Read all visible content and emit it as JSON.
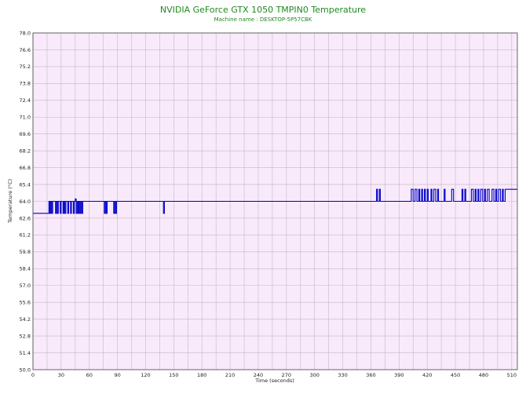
{
  "chart_data": {
    "type": "line",
    "title": "NVIDIA GeForce GTX 1050 TMPIN0 Temperature",
    "subtitle": "Machine name : DESKTOP-5P57CBK",
    "xlabel": "Time (seconds)",
    "ylabel": "Temperature (°C)",
    "xlim": [
      0,
      516
    ],
    "ylim": [
      50.0,
      78.0
    ],
    "x_ticks": [
      0,
      30,
      60,
      90,
      120,
      150,
      180,
      210,
      240,
      270,
      300,
      330,
      360,
      390,
      420,
      450,
      480,
      510
    ],
    "y_ticks": [
      "50.0",
      "51.4",
      "52.8",
      "54.2",
      "55.6",
      "57.0",
      "58.4",
      "59.8",
      "61.2",
      "62.6",
      "64.0",
      "65.4",
      "66.8",
      "68.2",
      "69.6",
      "71.0",
      "72.4",
      "73.8",
      "75.2",
      "76.6",
      "78.0"
    ],
    "grid": true,
    "colors": {
      "plot_bg": "#f8eafb",
      "grid": "#c8b4c8",
      "line": "#0000c8",
      "title": "#1f8a1f"
    },
    "series": [
      {
        "points": [
          [
            0,
            63.0
          ],
          [
            17,
            63.0
          ],
          [
            17,
            64.0
          ],
          [
            18,
            64.0
          ],
          [
            18,
            63.0
          ],
          [
            19,
            63.0
          ],
          [
            19,
            64.0
          ],
          [
            20,
            64.0
          ],
          [
            20,
            63.0
          ],
          [
            21,
            63.0
          ],
          [
            21,
            64.0
          ],
          [
            24,
            64.0
          ],
          [
            24,
            63.0
          ],
          [
            25,
            63.0
          ],
          [
            25,
            64.0
          ],
          [
            26,
            64.0
          ],
          [
            26,
            63.0
          ],
          [
            27,
            63.0
          ],
          [
            27,
            64.0
          ],
          [
            29,
            64.0
          ],
          [
            29,
            63.0
          ],
          [
            30,
            63.0
          ],
          [
            30,
            64.0
          ],
          [
            32,
            64.0
          ],
          [
            32,
            63.0
          ],
          [
            33,
            63.0
          ],
          [
            33,
            64.0
          ],
          [
            34,
            64.0
          ],
          [
            34,
            63.0
          ],
          [
            35,
            63.0
          ],
          [
            35,
            64.0
          ],
          [
            37,
            64.0
          ],
          [
            37,
            63.0
          ],
          [
            38,
            63.0
          ],
          [
            38,
            64.0
          ],
          [
            40,
            64.0
          ],
          [
            40,
            63.0
          ],
          [
            41,
            63.0
          ],
          [
            41,
            64.0
          ],
          [
            43,
            64.0
          ],
          [
            43,
            63.0
          ],
          [
            44,
            63.0
          ],
          [
            44,
            64.0
          ],
          [
            45,
            64.0
          ],
          [
            45,
            64.2
          ],
          [
            46,
            64.2
          ],
          [
            46,
            63.0
          ],
          [
            47,
            63.0
          ],
          [
            47,
            64.0
          ],
          [
            48,
            64.0
          ],
          [
            48,
            63.0
          ],
          [
            49,
            63.0
          ],
          [
            49,
            64.0
          ],
          [
            50,
            64.0
          ],
          [
            50,
            63.0
          ],
          [
            51,
            63.0
          ],
          [
            51,
            64.0
          ],
          [
            52,
            64.0
          ],
          [
            52,
            63.0
          ],
          [
            53,
            63.0
          ],
          [
            53,
            64.0
          ],
          [
            76,
            64.0
          ],
          [
            76,
            63.0
          ],
          [
            77,
            63.0
          ],
          [
            77,
            64.0
          ],
          [
            78,
            64.0
          ],
          [
            78,
            63.0
          ],
          [
            79,
            63.0
          ],
          [
            79,
            64.0
          ],
          [
            86,
            64.0
          ],
          [
            86,
            63.0
          ],
          [
            87,
            63.0
          ],
          [
            87,
            64.0
          ],
          [
            88,
            64.0
          ],
          [
            88,
            63.0
          ],
          [
            89,
            63.0
          ],
          [
            89,
            64.0
          ],
          [
            139,
            64.0
          ],
          [
            139,
            63.0
          ],
          [
            140,
            63.0
          ],
          [
            140,
            64.0
          ],
          [
            366,
            64.0
          ],
          [
            366,
            65.0
          ],
          [
            367,
            65.0
          ],
          [
            367,
            64.0
          ],
          [
            369,
            64.0
          ],
          [
            369,
            65.0
          ],
          [
            370,
            65.0
          ],
          [
            370,
            64.0
          ],
          [
            403,
            64.0
          ],
          [
            403,
            65.0
          ],
          [
            405,
            65.0
          ],
          [
            405,
            64.0
          ],
          [
            407,
            64.0
          ],
          [
            407,
            65.0
          ],
          [
            409,
            65.0
          ],
          [
            409,
            64.0
          ],
          [
            411,
            64.0
          ],
          [
            411,
            65.0
          ],
          [
            412,
            65.0
          ],
          [
            412,
            64.0
          ],
          [
            414,
            64.0
          ],
          [
            414,
            65.0
          ],
          [
            415,
            65.0
          ],
          [
            415,
            64.0
          ],
          [
            417,
            64.0
          ],
          [
            417,
            65.0
          ],
          [
            418,
            65.0
          ],
          [
            418,
            64.0
          ],
          [
            420,
            64.0
          ],
          [
            420,
            65.0
          ],
          [
            421,
            65.0
          ],
          [
            421,
            64.0
          ],
          [
            424,
            64.0
          ],
          [
            424,
            65.0
          ],
          [
            425,
            65.0
          ],
          [
            425,
            64.0
          ],
          [
            427,
            64.0
          ],
          [
            427,
            65.0
          ],
          [
            429,
            65.0
          ],
          [
            429,
            64.0
          ],
          [
            431,
            64.0
          ],
          [
            431,
            65.0
          ],
          [
            432,
            65.0
          ],
          [
            432,
            64.0
          ],
          [
            438,
            64.0
          ],
          [
            438,
            65.0
          ],
          [
            439,
            65.0
          ],
          [
            439,
            64.0
          ],
          [
            446,
            64.0
          ],
          [
            446,
            65.0
          ],
          [
            448,
            65.0
          ],
          [
            448,
            64.0
          ],
          [
            457,
            64.0
          ],
          [
            457,
            65.0
          ],
          [
            458,
            65.0
          ],
          [
            458,
            64.0
          ],
          [
            460,
            64.0
          ],
          [
            460,
            65.0
          ],
          [
            461,
            65.0
          ],
          [
            461,
            64.0
          ],
          [
            467,
            64.0
          ],
          [
            467,
            65.0
          ],
          [
            469,
            65.0
          ],
          [
            469,
            64.0
          ],
          [
            471,
            64.0
          ],
          [
            471,
            65.0
          ],
          [
            472,
            65.0
          ],
          [
            472,
            64.0
          ],
          [
            474,
            64.0
          ],
          [
            474,
            65.0
          ],
          [
            475,
            65.0
          ],
          [
            475,
            64.0
          ],
          [
            477,
            64.0
          ],
          [
            477,
            65.0
          ],
          [
            479,
            65.0
          ],
          [
            479,
            64.0
          ],
          [
            481,
            64.0
          ],
          [
            481,
            65.0
          ],
          [
            482,
            65.0
          ],
          [
            482,
            64.0
          ],
          [
            484,
            64.0
          ],
          [
            484,
            65.0
          ],
          [
            486,
            65.0
          ],
          [
            486,
            64.0
          ],
          [
            489,
            64.0
          ],
          [
            489,
            65.0
          ],
          [
            491,
            65.0
          ],
          [
            491,
            64.0
          ],
          [
            493,
            64.0
          ],
          [
            493,
            65.0
          ],
          [
            494,
            65.0
          ],
          [
            494,
            64.0
          ],
          [
            496,
            64.0
          ],
          [
            496,
            65.0
          ],
          [
            498,
            65.0
          ],
          [
            498,
            64.0
          ],
          [
            500,
            64.0
          ],
          [
            500,
            65.0
          ],
          [
            501,
            65.0
          ],
          [
            501,
            64.0
          ],
          [
            503,
            64.0
          ],
          [
            503,
            65.0
          ],
          [
            516,
            65.0
          ]
        ]
      }
    ]
  }
}
